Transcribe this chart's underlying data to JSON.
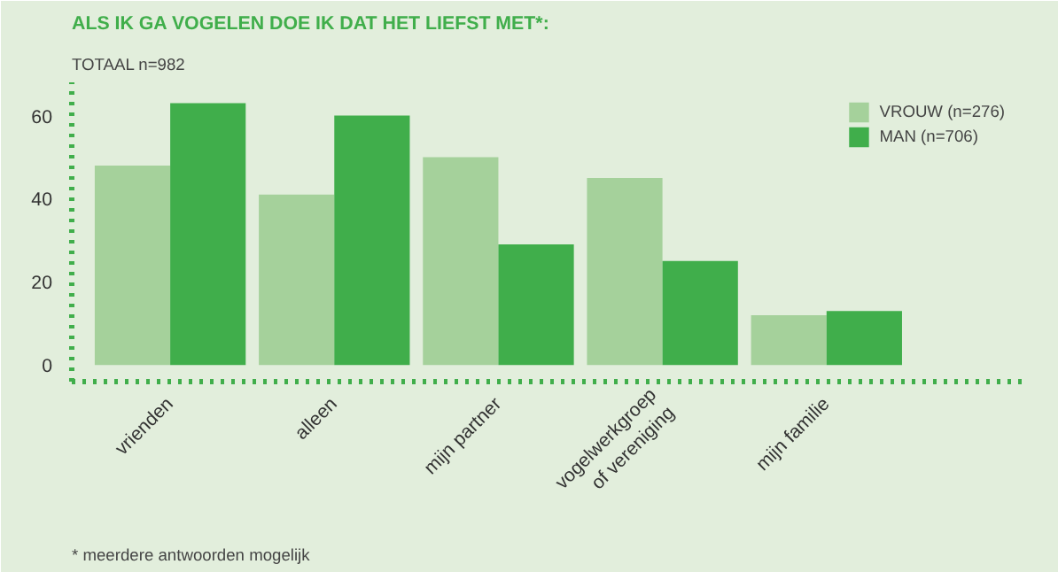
{
  "chart_data": {
    "type": "bar",
    "title": "ALS IK GA VOGELEN DOE IK DAT HET LIEFST MET*:",
    "subtitle": "TOTAAL n=982",
    "categories": [
      "vrienden",
      "alleen",
      "mijn partner",
      "vogelwerkgroep\nof vereniging",
      "mijn familie"
    ],
    "series": [
      {
        "name": "VROUW (n=276)",
        "color": "#a5d19b",
        "values": [
          48,
          41,
          50,
          45,
          12
        ]
      },
      {
        "name": "MAN (n=706)",
        "color": "#40ae4b",
        "values": [
          63,
          60,
          29,
          25,
          13
        ]
      }
    ],
    "ylim": [
      -4,
      68
    ],
    "yticks": [
      0,
      20,
      40,
      60
    ],
    "grid": false,
    "legend": "top right",
    "annotations": [
      "* meerdere antwoorden mogelijk"
    ]
  }
}
